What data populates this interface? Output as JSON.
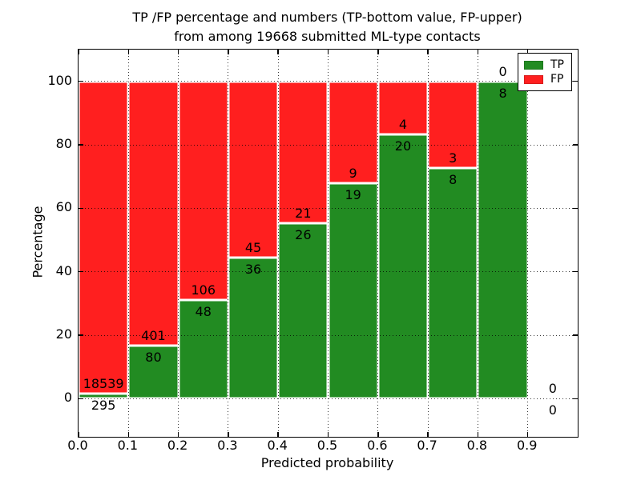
{
  "title_line1": "TP /FP percentage and numbers (TP-bottom value, FP-upper)",
  "title_line2": "from among 19668 submitted ML-type contacts",
  "chart_data": {
    "type": "bar",
    "stacked": true,
    "title": "TP /FP percentage and numbers (TP-bottom value, FP-upper) from among 19668 submitted ML-type contacts",
    "total_contacts": 19668,
    "xlabel": "Predicted probability",
    "ylabel": "Percentage",
    "xlim": [
      0.0,
      1.0
    ],
    "ylim": [
      -12,
      110
    ],
    "grid": true,
    "x_ticks": [
      {
        "value": 0.0,
        "label": "0.0"
      },
      {
        "value": 0.1,
        "label": "0.1"
      },
      {
        "value": 0.2,
        "label": "0.2"
      },
      {
        "value": 0.3,
        "label": "0.3"
      },
      {
        "value": 0.4,
        "label": "0.4"
      },
      {
        "value": 0.5,
        "label": "0.5"
      },
      {
        "value": 0.6,
        "label": "0.6"
      },
      {
        "value": 0.7,
        "label": "0.7"
      },
      {
        "value": 0.8,
        "label": "0.8"
      },
      {
        "value": 0.9,
        "label": "0.9"
      }
    ],
    "y_ticks": [
      {
        "value": 0,
        "label": "0"
      },
      {
        "value": 20,
        "label": "20"
      },
      {
        "value": 40,
        "label": "40"
      },
      {
        "value": 60,
        "label": "60"
      },
      {
        "value": 80,
        "label": "80"
      },
      {
        "value": 100,
        "label": "100"
      }
    ],
    "colors": {
      "tp": "#228B22",
      "fp": "#FF1F1F"
    },
    "legend": {
      "position": "upper right",
      "entries": [
        {
          "label": "TP",
          "color": "#228B22"
        },
        {
          "label": "FP",
          "color": "#FF1F1F"
        }
      ]
    },
    "bins": [
      {
        "x0": 0.0,
        "x1": 0.1,
        "tp": 295,
        "fp": 18539,
        "tp_pct": 1.57
      },
      {
        "x0": 0.1,
        "x1": 0.2,
        "tp": 80,
        "fp": 401,
        "tp_pct": 16.63
      },
      {
        "x0": 0.2,
        "x1": 0.3,
        "tp": 48,
        "fp": 106,
        "tp_pct": 31.17
      },
      {
        "x0": 0.3,
        "x1": 0.4,
        "tp": 36,
        "fp": 45,
        "tp_pct": 44.44
      },
      {
        "x0": 0.4,
        "x1": 0.5,
        "tp": 26,
        "fp": 21,
        "tp_pct": 55.32
      },
      {
        "x0": 0.5,
        "x1": 0.6,
        "tp": 19,
        "fp": 9,
        "tp_pct": 67.86
      },
      {
        "x0": 0.6,
        "x1": 0.7,
        "tp": 20,
        "fp": 4,
        "tp_pct": 83.33
      },
      {
        "x0": 0.7,
        "x1": 0.8,
        "tp": 8,
        "fp": 3,
        "tp_pct": 72.73
      },
      {
        "x0": 0.8,
        "x1": 0.9,
        "tp": 8,
        "fp": 0,
        "tp_pct": 100.0
      },
      {
        "x0": 0.9,
        "x1": 1.0,
        "tp": 0,
        "fp": 0,
        "tp_pct": 0.0
      }
    ]
  }
}
